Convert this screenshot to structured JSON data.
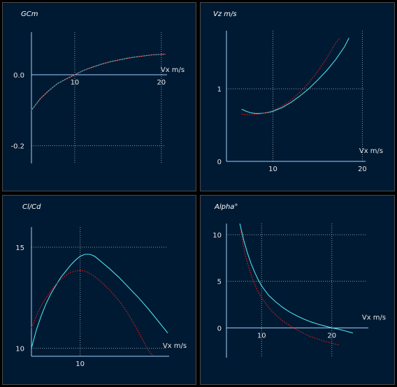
{
  "colors": {
    "background": "#001a33",
    "curve_cyan": "#4fdfe8",
    "curve_red": "#c41818",
    "axis": "#9fd0ff",
    "grid": "#8a9aa8"
  },
  "chart_data": [
    {
      "id": "gcm",
      "type": "line",
      "title": "GCm",
      "xlabel": "Vx m/s",
      "ylabel": "",
      "xlim": [
        5,
        20.5
      ],
      "ylim": [
        -0.25,
        0.12
      ],
      "x_ticks": [
        10,
        20
      ],
      "y_ticks": [
        0.0,
        -0.2
      ],
      "x_tick_labels": [
        "10",
        "20"
      ],
      "y_tick_labels": [
        "0.0",
        "-0.2"
      ],
      "grid": true,
      "series": [
        {
          "color": "#4fdfe8",
          "style": "solid",
          "x": [
            5,
            6,
            7,
            8,
            9,
            10,
            11,
            12,
            13,
            14,
            15,
            16,
            17,
            18,
            19,
            20.5
          ],
          "y": [
            -0.1,
            -0.068,
            -0.045,
            -0.025,
            -0.012,
            0.0,
            0.012,
            0.021,
            0.029,
            0.036,
            0.041,
            0.046,
            0.05,
            0.053,
            0.056,
            0.058
          ]
        },
        {
          "color": "#c41818",
          "style": "dashed",
          "x": [
            5,
            6,
            7,
            8,
            9,
            10,
            11,
            12,
            13,
            14,
            15,
            16,
            17,
            18,
            19,
            20.5
          ],
          "y": [
            -0.1,
            -0.068,
            -0.045,
            -0.025,
            -0.012,
            0.0,
            0.012,
            0.021,
            0.029,
            0.036,
            0.041,
            0.046,
            0.05,
            0.053,
            0.056,
            0.058
          ]
        }
      ]
    },
    {
      "id": "vz",
      "type": "line",
      "title": "Vz m/s",
      "xlabel": "Vx m/s",
      "ylabel": "",
      "xlim": [
        4.8,
        20.2
      ],
      "ylim": [
        0,
        1.8
      ],
      "x_ticks": [
        10,
        20
      ],
      "y_ticks": [
        0,
        1
      ],
      "x_tick_labels": [
        "10",
        "20"
      ],
      "y_tick_labels": [
        "0",
        "1"
      ],
      "grid": true,
      "series": [
        {
          "color": "#4fdfe8",
          "style": "solid",
          "x": [
            6.5,
            7,
            7.5,
            8,
            8.5,
            9,
            9.5,
            10,
            11,
            12,
            13,
            14,
            15,
            16,
            17,
            18,
            18.5
          ],
          "y": [
            0.72,
            0.69,
            0.67,
            0.66,
            0.66,
            0.665,
            0.675,
            0.69,
            0.74,
            0.81,
            0.9,
            1.0,
            1.12,
            1.25,
            1.4,
            1.58,
            1.7
          ]
        },
        {
          "color": "#c41818",
          "style": "dashed",
          "x": [
            6.5,
            7,
            7.5,
            8,
            8.5,
            9,
            9.5,
            10,
            11,
            12,
            13,
            14,
            15,
            16,
            17,
            17.5
          ],
          "y": [
            0.65,
            0.645,
            0.643,
            0.645,
            0.652,
            0.665,
            0.68,
            0.7,
            0.76,
            0.84,
            0.95,
            1.08,
            1.24,
            1.42,
            1.63,
            1.7
          ]
        }
      ]
    },
    {
      "id": "clcd",
      "type": "line",
      "title": "Cl/Cd",
      "xlabel": "Vx m/s",
      "ylabel": "",
      "xlim": [
        5,
        19
      ],
      "ylim": [
        9.6,
        16
      ],
      "x_ticks": [
        10
      ],
      "y_ticks": [
        10,
        15
      ],
      "x_tick_labels": [
        "10"
      ],
      "y_tick_labels": [
        "10",
        "15"
      ],
      "grid": true,
      "series": [
        {
          "color": "#4fdfe8",
          "style": "solid",
          "x": [
            5,
            5.5,
            6,
            6.5,
            7,
            7.5,
            8,
            8.5,
            9,
            9.5,
            10,
            10.5,
            11,
            11.5,
            12,
            13,
            14,
            15,
            16,
            17,
            18,
            19
          ],
          "y": [
            10.0,
            10.9,
            11.6,
            12.2,
            12.7,
            13.1,
            13.5,
            13.8,
            14.1,
            14.35,
            14.55,
            14.65,
            14.65,
            14.55,
            14.35,
            13.95,
            13.5,
            13.0,
            12.5,
            11.95,
            11.35,
            10.75
          ]
        },
        {
          "color": "#c41818",
          "style": "dashed",
          "x": [
            5,
            5.5,
            6,
            6.5,
            7,
            7.5,
            8,
            8.5,
            9,
            9.5,
            10,
            10.5,
            11,
            11.5,
            12,
            13,
            14,
            15,
            16,
            17,
            17.5
          ],
          "y": [
            11.0,
            11.6,
            12.1,
            12.5,
            12.85,
            13.15,
            13.4,
            13.6,
            13.75,
            13.82,
            13.85,
            13.82,
            13.7,
            13.55,
            13.35,
            12.9,
            12.35,
            11.65,
            10.8,
            9.9,
            9.6
          ]
        }
      ]
    },
    {
      "id": "alpha",
      "type": "line",
      "title": "Alpha°",
      "xlabel": "Vx m/s",
      "ylabel": "",
      "xlim": [
        5,
        25
      ],
      "ylim": [
        -3.2,
        11.2
      ],
      "x_ticks": [
        10,
        20
      ],
      "y_ticks": [
        0,
        5,
        10
      ],
      "x_tick_labels": [
        "10",
        "20"
      ],
      "y_tick_labels": [
        "0",
        "5",
        "10"
      ],
      "grid": true,
      "series": [
        {
          "color": "#4fdfe8",
          "style": "solid",
          "x": [
            6.9,
            7.5,
            8,
            8.5,
            9,
            9.5,
            10,
            11,
            12,
            13,
            14,
            15,
            16,
            17,
            18,
            19,
            20,
            21,
            22,
            23
          ],
          "y": [
            11.2,
            9.3,
            8.0,
            6.9,
            6.0,
            5.2,
            4.5,
            3.5,
            2.8,
            2.2,
            1.7,
            1.3,
            0.95,
            0.65,
            0.4,
            0.2,
            0.0,
            -0.15,
            -0.35,
            -0.55
          ]
        },
        {
          "color": "#c41818",
          "style": "dashed",
          "x": [
            7.0,
            7.5,
            8,
            8.5,
            9,
            9.5,
            10,
            11,
            12,
            13,
            14,
            15,
            16,
            17,
            18,
            19,
            20,
            21
          ],
          "y": [
            10.6,
            8.4,
            6.9,
            5.7,
            4.7,
            3.9,
            3.2,
            2.2,
            1.4,
            0.75,
            0.25,
            -0.2,
            -0.6,
            -0.95,
            -1.2,
            -1.45,
            -1.65,
            -1.85
          ]
        }
      ]
    }
  ]
}
